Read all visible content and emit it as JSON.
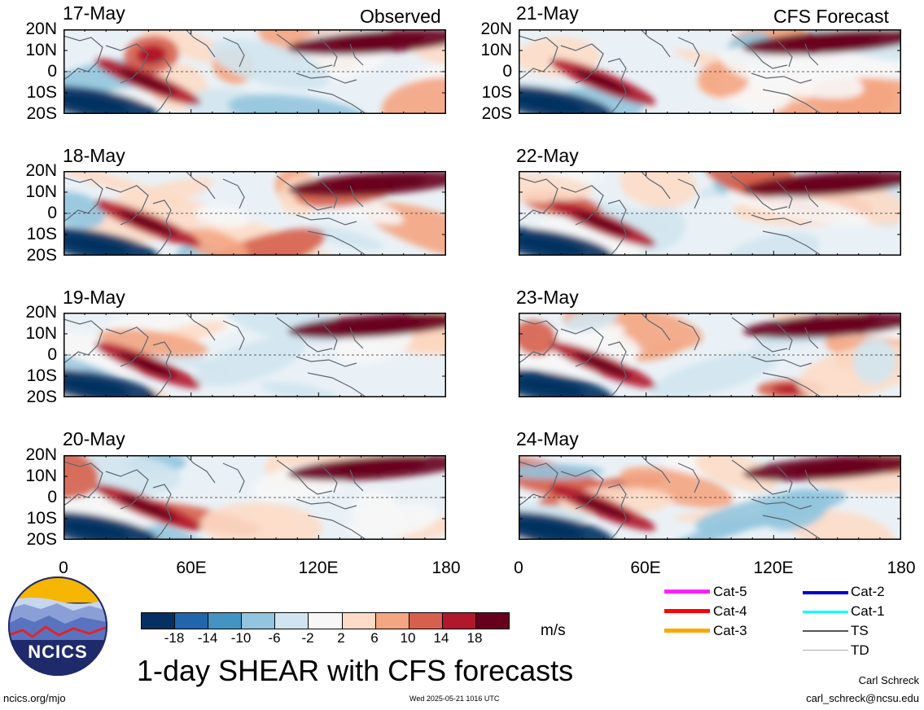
{
  "title": "1-day SHEAR with CFS forecasts",
  "left_heading": "Observed",
  "right_heading": "CFS Forecast",
  "lat_labels": [
    "20N",
    "10N",
    "0",
    "10S",
    "20S"
  ],
  "lon_labels": [
    "0",
    "60E",
    "120E",
    "180"
  ],
  "panels": [
    {
      "date": "17-May"
    },
    {
      "date": "21-May"
    },
    {
      "date": "18-May"
    },
    {
      "date": "22-May"
    },
    {
      "date": "19-May"
    },
    {
      "date": "23-May"
    },
    {
      "date": "20-May"
    },
    {
      "date": "24-May"
    }
  ],
  "colorbar": {
    "ticks": [
      "-18",
      "-14",
      "-10",
      "-6",
      "-2",
      "2",
      "6",
      "10",
      "14",
      "18"
    ],
    "units": "m/s",
    "colors": [
      "#053061",
      "#2166ac",
      "#4393c3",
      "#92c5de",
      "#d1e5f0",
      "#f7f7f7",
      "#fddbc7",
      "#f4a582",
      "#d6604d",
      "#b2182b",
      "#67001f"
    ]
  },
  "storm_legend": [
    {
      "label": "Cat-5",
      "color": "#ff22ff"
    },
    {
      "label": "Cat-4",
      "color": "#ff0000"
    },
    {
      "label": "Cat-3",
      "color": "#ffa500"
    },
    {
      "label": "Cat-2",
      "color": "#0000cc"
    },
    {
      "label": "Cat-1",
      "color": "#00ffff"
    },
    {
      "label": "TS",
      "color": "#555555"
    },
    {
      "label": "TD",
      "color": "#aaaaaa"
    }
  ],
  "logo_text": "NCICS",
  "footer": {
    "url": "ncics.org/mjo",
    "timestamp": "Wed 2025-05-21 1016 UTC",
    "author": "Carl Schreck",
    "email": "carl_schreck@ncsu.edu"
  }
}
